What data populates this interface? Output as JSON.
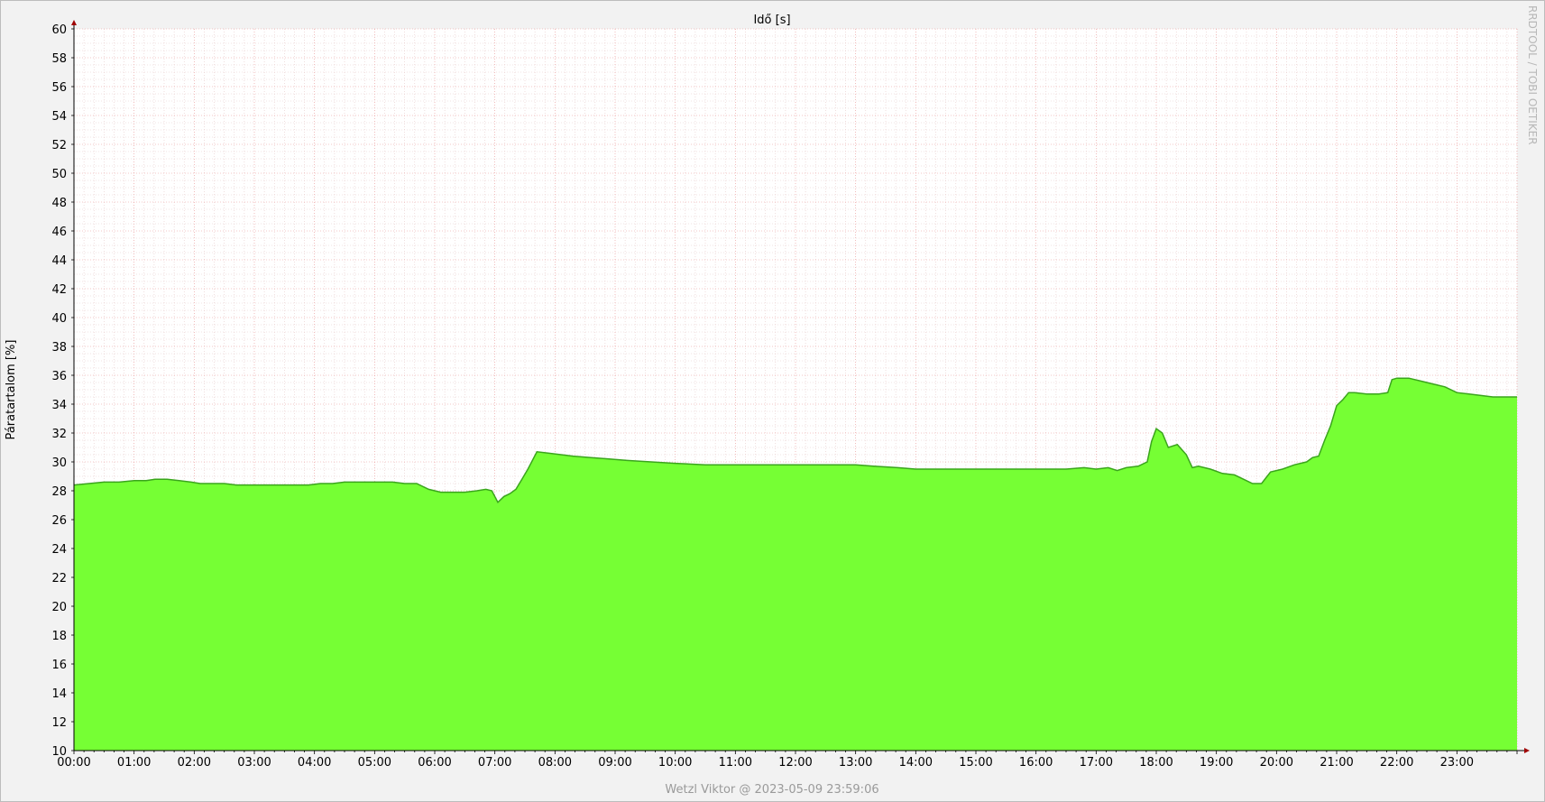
{
  "chart_data": {
    "type": "area",
    "title": "Idő [s]",
    "xlabel": "",
    "ylabel": "Páratartalom [%]",
    "watermark": "RRDTOOL / TOBI OETIKER",
    "footer": "Wetzl Viktor @ 2023-05-09 23:59:06",
    "ylim": [
      10,
      60
    ],
    "xlim": [
      0,
      24
    ],
    "y_ticks": [
      10,
      12,
      14,
      16,
      18,
      20,
      22,
      24,
      26,
      28,
      30,
      32,
      34,
      36,
      38,
      40,
      42,
      44,
      46,
      48,
      50,
      52,
      54,
      56,
      58,
      60
    ],
    "x_tick_labels": [
      "00:00",
      "01:00",
      "02:00",
      "03:00",
      "04:00",
      "05:00",
      "06:00",
      "07:00",
      "08:00",
      "09:00",
      "10:00",
      "11:00",
      "12:00",
      "13:00",
      "14:00",
      "15:00",
      "16:00",
      "17:00",
      "18:00",
      "19:00",
      "20:00",
      "21:00",
      "22:00",
      "23:00"
    ],
    "grid": true,
    "colors": {
      "fill": "#76ff34",
      "line": "#3aa51c",
      "grid_minor": "#e6c8c8",
      "grid_major": "#e89090",
      "axis": "#a00000"
    },
    "series": [
      {
        "x": [
          0.0,
          0.25,
          0.5,
          0.75,
          1.0,
          1.2,
          1.35,
          1.55,
          1.75,
          1.95,
          2.1,
          2.3,
          2.5,
          2.7,
          3.0,
          3.25,
          3.45,
          3.7,
          3.9,
          4.1,
          4.3,
          4.5,
          4.7,
          4.9,
          5.1,
          5.3,
          5.5,
          5.7,
          5.9,
          6.1,
          6.3,
          6.5,
          6.7,
          6.85,
          6.95,
          7.05,
          7.15,
          7.25,
          7.35,
          7.45,
          7.55,
          7.7,
          7.9,
          8.1,
          8.3,
          8.6,
          8.9,
          9.2,
          9.6,
          10.0,
          10.5,
          11.0,
          11.5,
          12.0,
          12.5,
          13.0,
          13.3,
          13.7,
          14.0,
          14.3,
          14.7,
          15.0,
          15.5,
          16.0,
          16.5,
          16.8,
          17.0,
          17.2,
          17.35,
          17.5,
          17.7,
          17.85,
          17.92,
          18.0,
          18.1,
          18.2,
          18.35,
          18.5,
          18.6,
          18.7,
          18.9,
          19.1,
          19.3,
          19.45,
          19.6,
          19.75,
          19.9,
          20.1,
          20.3,
          20.5,
          20.6,
          20.7,
          20.8,
          20.9,
          21.0,
          21.1,
          21.2,
          21.3,
          21.5,
          21.7,
          21.85,
          21.92,
          22.0,
          22.2,
          22.4,
          22.6,
          22.8,
          23.0,
          23.2,
          23.4,
          23.6,
          23.75,
          24.0
        ],
        "y": [
          28.4,
          28.5,
          28.6,
          28.6,
          28.7,
          28.7,
          28.8,
          28.8,
          28.7,
          28.6,
          28.5,
          28.5,
          28.5,
          28.4,
          28.4,
          28.4,
          28.4,
          28.4,
          28.4,
          28.5,
          28.5,
          28.6,
          28.6,
          28.6,
          28.6,
          28.6,
          28.5,
          28.5,
          28.1,
          27.9,
          27.9,
          27.9,
          28.0,
          28.1,
          28.0,
          27.2,
          27.6,
          27.8,
          28.1,
          28.8,
          29.5,
          30.7,
          30.6,
          30.5,
          30.4,
          30.3,
          30.2,
          30.1,
          30.0,
          29.9,
          29.8,
          29.8,
          29.8,
          29.8,
          29.8,
          29.8,
          29.7,
          29.6,
          29.5,
          29.5,
          29.5,
          29.5,
          29.5,
          29.5,
          29.5,
          29.6,
          29.5,
          29.6,
          29.4,
          29.6,
          29.7,
          30.0,
          31.4,
          32.3,
          32.0,
          31.0,
          31.2,
          30.5,
          29.6,
          29.7,
          29.5,
          29.2,
          29.1,
          28.8,
          28.5,
          28.5,
          29.3,
          29.5,
          29.8,
          30.0,
          30.3,
          30.4,
          31.5,
          32.5,
          33.9,
          34.3,
          34.8,
          34.8,
          34.7,
          34.7,
          34.8,
          35.7,
          35.8,
          35.8,
          35.6,
          35.4,
          35.2,
          34.8,
          34.7,
          34.6,
          34.5,
          34.5,
          34.5
        ]
      }
    ]
  }
}
